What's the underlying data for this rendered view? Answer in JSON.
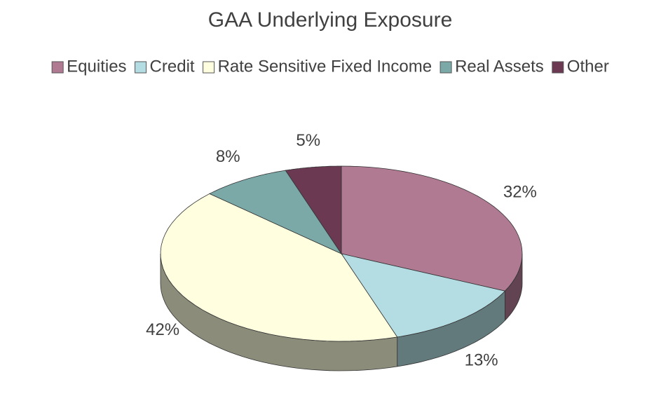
{
  "chart_data": {
    "type": "pie",
    "title": "GAA Underlying Exposure",
    "categories": [
      "Equities",
      "Credit",
      "Rate Sensitive Fixed Income",
      "Real Assets",
      "Other"
    ],
    "values": [
      32,
      13,
      42,
      8,
      5
    ],
    "value_labels": [
      "32%",
      "13%",
      "42%",
      "8%",
      "5%"
    ],
    "colors": [
      "#b07a93",
      "#b4dde3",
      "#ffffe0",
      "#7aa9a8",
      "#6b3a52"
    ],
    "legend": "top"
  }
}
